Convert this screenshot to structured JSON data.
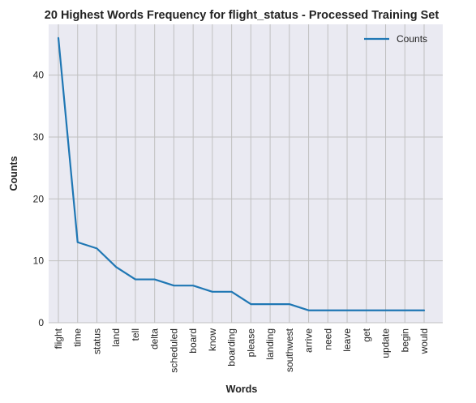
{
  "chart_data": {
    "type": "line",
    "title": "20 Highest Words Frequency for flight_status - Processed Training Set",
    "xlabel": "Words",
    "ylabel": "Counts",
    "categories": [
      "flight",
      "time",
      "status",
      "land",
      "tell",
      "delta",
      "scheduled",
      "board",
      "know",
      "boarding",
      "please",
      "landing",
      "southwest",
      "arrive",
      "need",
      "leave",
      "get",
      "update",
      "begin",
      "would"
    ],
    "series": [
      {
        "name": "Counts",
        "values": [
          46,
          13,
          12,
          9,
          7,
          7,
          6,
          6,
          5,
          5,
          3,
          3,
          3,
          2,
          2,
          2,
          2,
          2,
          2,
          2
        ],
        "color": "#1f77b4"
      }
    ],
    "ylim": [
      0,
      48.2
    ],
    "yticks": [
      0,
      10,
      20,
      30,
      40
    ],
    "grid": true,
    "legend_position": "top-right",
    "plot_background": "#eaeaf2",
    "grid_color": "#c0c0c0"
  }
}
